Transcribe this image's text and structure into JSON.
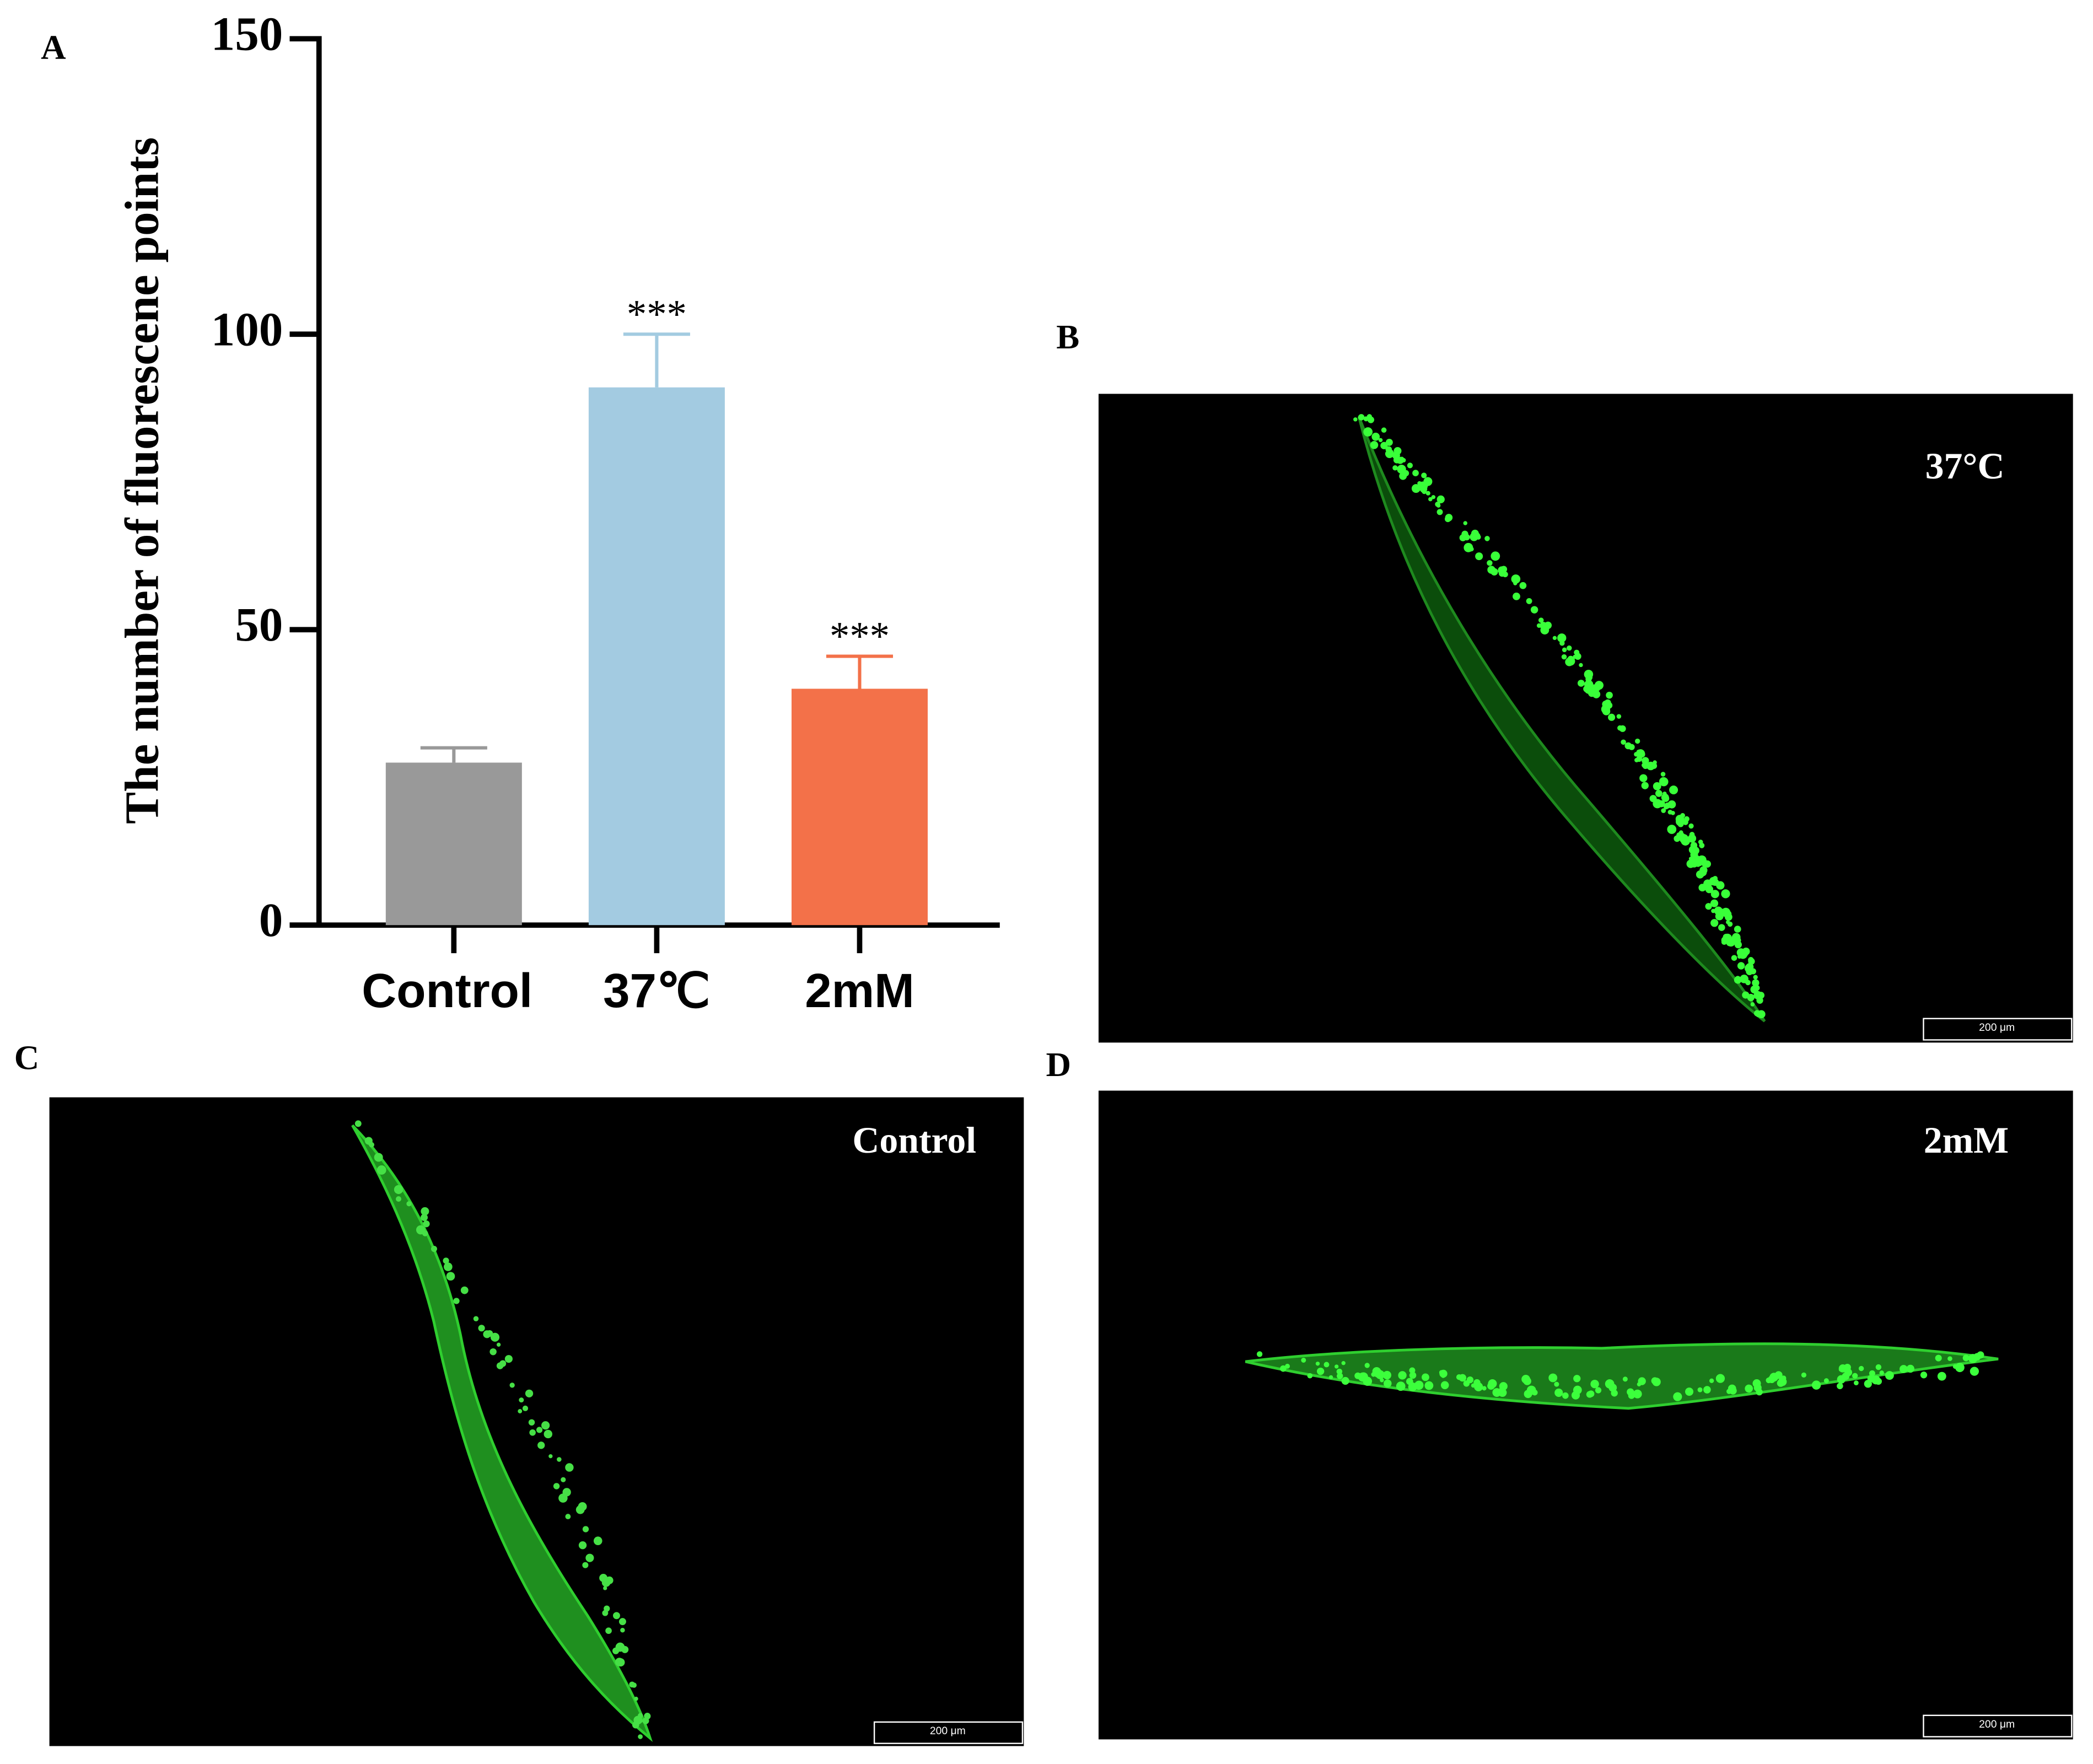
{
  "chart_data": {
    "type": "bar",
    "panel_letter": "A",
    "ylabel": "The number of fluorescene points",
    "categories": [
      "Control",
      "37℃",
      "2mM"
    ],
    "values": [
      27.5,
      91,
      40
    ],
    "errors": [
      2.5,
      9,
      5.5
    ],
    "annotations": [
      null,
      "***",
      "***"
    ],
    "colors": [
      "#999999",
      "#a3cbe1",
      "#f37149"
    ],
    "ylim": [
      0,
      150
    ],
    "yticks": [
      0,
      50,
      100,
      150
    ],
    "grid": false
  },
  "panels": [
    {
      "letter": "B",
      "label": "37°C",
      "scale_bar": "200 μm"
    },
    {
      "letter": "C",
      "label": "Control",
      "scale_bar": "200 μm"
    },
    {
      "letter": "D",
      "label": "2mM",
      "scale_bar": "200 μm"
    }
  ]
}
